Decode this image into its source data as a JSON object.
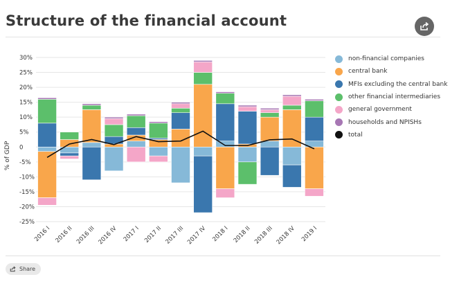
{
  "title": "Structure of the financial account",
  "share_label": "Share",
  "icons": {
    "share_top": "share-icon",
    "share_button": "share-icon"
  },
  "chart_data": {
    "type": "bar",
    "stacked": true,
    "ylabel": "% of GDP",
    "ylim": [
      -25,
      30
    ],
    "yticks": [
      "30%",
      "25%",
      "20%",
      "15%",
      "10%",
      "5%",
      "0",
      "-5%",
      "-10%",
      "-15%",
      "-20%",
      "-25%"
    ],
    "ytick_values": [
      30,
      25,
      20,
      15,
      10,
      5,
      0,
      -5,
      -10,
      -15,
      -20,
      -25
    ],
    "grid": true,
    "legend_position": "right",
    "categories": [
      "2016 I",
      "2016 II",
      "2016 III",
      "2016 IV",
      "2017 I",
      "2017 II",
      "2017 III",
      "2017 IV",
      "2018 I",
      "2018 II",
      "2018 III",
      "2018 IV",
      "2019 I"
    ],
    "series": [
      {
        "name": "non-financial companies",
        "color": "#86b9d8",
        "values": [
          -1.5,
          -2.0,
          1.5,
          -8.0,
          2.0,
          -3.0,
          -12.0,
          -3.0,
          2.0,
          -5.0,
          2.0,
          -6.0,
          2.0
        ]
      },
      {
        "name": "central bank",
        "color": "#f9a64b",
        "values": [
          -15.5,
          2.5,
          11.0,
          1.0,
          2.0,
          2.5,
          6.0,
          21.0,
          -14.0,
          1.0,
          8.0,
          12.5,
          -14.0
        ]
      },
      {
        "name": "MFIs excluding the central bank",
        "color": "#3a77ae",
        "values": [
          8.0,
          -1.0,
          -11.0,
          2.5,
          2.5,
          0.5,
          5.5,
          -19.0,
          12.5,
          11.0,
          -9.5,
          -7.5,
          8.0
        ]
      },
      {
        "name": "other financial intermediaries",
        "color": "#5cbf6b",
        "values": [
          8.0,
          2.5,
          1.5,
          4.0,
          4.0,
          5.0,
          1.5,
          4.0,
          3.5,
          -7.5,
          1.5,
          1.5,
          5.5
        ]
      },
      {
        "name": "general government",
        "color": "#f4a6c8",
        "values": [
          -2.5,
          -1.0,
          0.0,
          2.0,
          -5.0,
          -2.0,
          1.5,
          3.5,
          -3.0,
          1.5,
          1.0,
          3.0,
          -2.5
        ]
      },
      {
        "name": "households and NPISHs",
        "color": "#a777b4",
        "values": [
          0.5,
          0.0,
          0.5,
          0.5,
          0.5,
          0.5,
          0.5,
          0.5,
          0.5,
          0.5,
          0.5,
          0.5,
          0.5
        ]
      }
    ],
    "total": {
      "name": "total",
      "color": "#111111",
      "values": [
        -3.5,
        1.0,
        2.5,
        0.8,
        3.5,
        1.8,
        2.0,
        5.3,
        0.5,
        0.5,
        2.4,
        2.7,
        -0.6
      ]
    }
  }
}
